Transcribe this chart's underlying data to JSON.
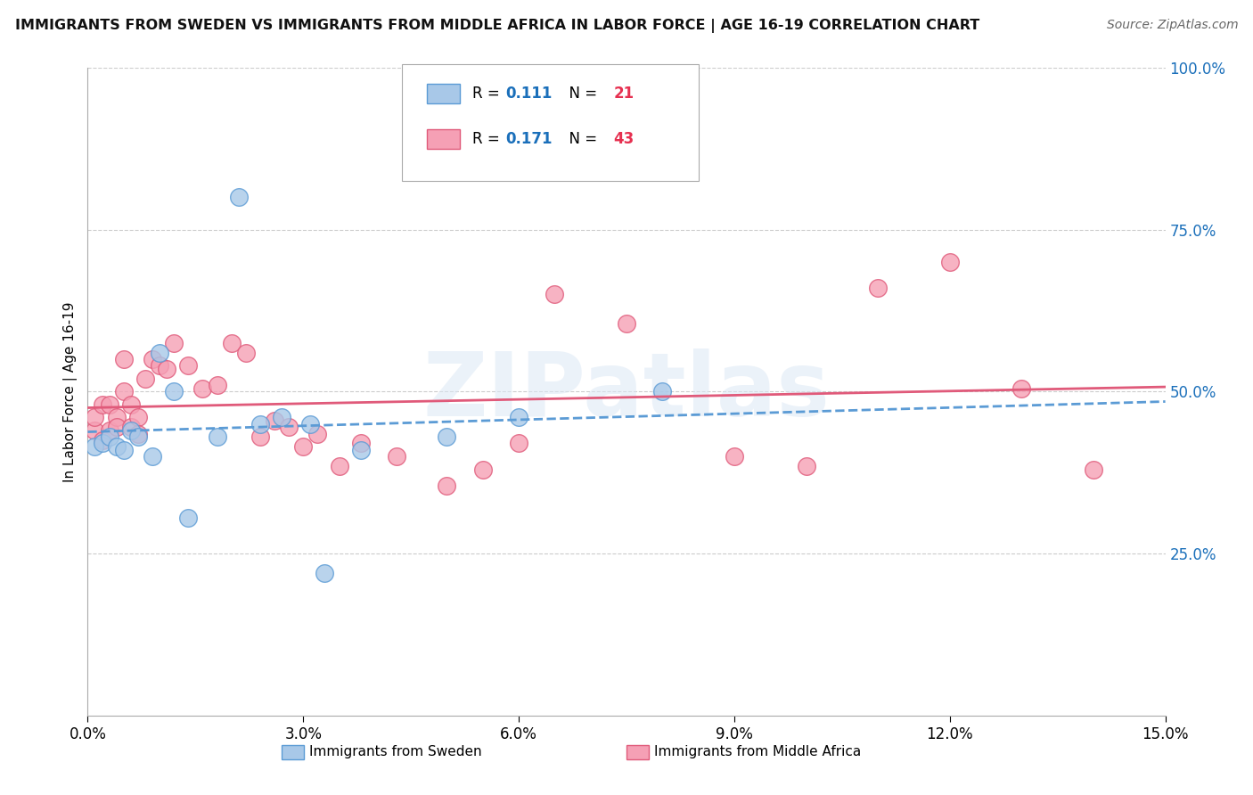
{
  "title": "IMMIGRANTS FROM SWEDEN VS IMMIGRANTS FROM MIDDLE AFRICA IN LABOR FORCE | AGE 16-19 CORRELATION CHART",
  "source": "Source: ZipAtlas.com",
  "ylabel": "In Labor Force | Age 16-19",
  "xlim": [
    0.0,
    0.15
  ],
  "ylim": [
    0.0,
    1.0
  ],
  "yticks": [
    0.0,
    0.25,
    0.5,
    0.75,
    1.0
  ],
  "ytick_labels": [
    "",
    "25.0%",
    "50.0%",
    "75.0%",
    "100.0%"
  ],
  "xticks": [
    0.0,
    0.03,
    0.06,
    0.09,
    0.12,
    0.15
  ],
  "xtick_labels": [
    "0.0%",
    "3.0%",
    "6.0%",
    "9.0%",
    "12.0%",
    "15.0%"
  ],
  "sweden_color": "#a8c8e8",
  "sweden_edge": "#5b9bd5",
  "middle_africa_color": "#f5a0b5",
  "middle_africa_edge": "#e05a7a",
  "trend_blue": "#5b9bd5",
  "trend_pink": "#e05a7a",
  "sweden_R": 0.111,
  "sweden_N": 21,
  "middle_africa_R": 0.171,
  "middle_africa_N": 43,
  "legend_R_color": "#1a6fba",
  "legend_N_color": "#e63050",
  "watermark": "ZIPatlas",
  "sweden_x": [
    0.001,
    0.002,
    0.003,
    0.004,
    0.005,
    0.006,
    0.007,
    0.009,
    0.01,
    0.012,
    0.014,
    0.018,
    0.021,
    0.024,
    0.027,
    0.031,
    0.038,
    0.05,
    0.06,
    0.08,
    0.033
  ],
  "sweden_y": [
    0.415,
    0.42,
    0.43,
    0.415,
    0.41,
    0.44,
    0.43,
    0.4,
    0.56,
    0.5,
    0.305,
    0.43,
    0.8,
    0.45,
    0.46,
    0.45,
    0.41,
    0.43,
    0.46,
    0.5,
    0.22
  ],
  "middle_africa_x": [
    0.001,
    0.001,
    0.002,
    0.002,
    0.003,
    0.003,
    0.004,
    0.004,
    0.005,
    0.005,
    0.006,
    0.006,
    0.007,
    0.007,
    0.008,
    0.009,
    0.01,
    0.011,
    0.012,
    0.014,
    0.016,
    0.018,
    0.02,
    0.022,
    0.024,
    0.026,
    0.028,
    0.03,
    0.032,
    0.035,
    0.038,
    0.043,
    0.05,
    0.055,
    0.06,
    0.065,
    0.075,
    0.09,
    0.1,
    0.11,
    0.12,
    0.13,
    0.14
  ],
  "middle_africa_y": [
    0.44,
    0.46,
    0.425,
    0.48,
    0.48,
    0.44,
    0.46,
    0.445,
    0.55,
    0.5,
    0.48,
    0.445,
    0.46,
    0.435,
    0.52,
    0.55,
    0.54,
    0.535,
    0.575,
    0.54,
    0.505,
    0.51,
    0.575,
    0.56,
    0.43,
    0.455,
    0.445,
    0.415,
    0.435,
    0.385,
    0.42,
    0.4,
    0.355,
    0.38,
    0.42,
    0.65,
    0.605,
    0.4,
    0.385,
    0.66,
    0.7,
    0.505,
    0.38
  ]
}
